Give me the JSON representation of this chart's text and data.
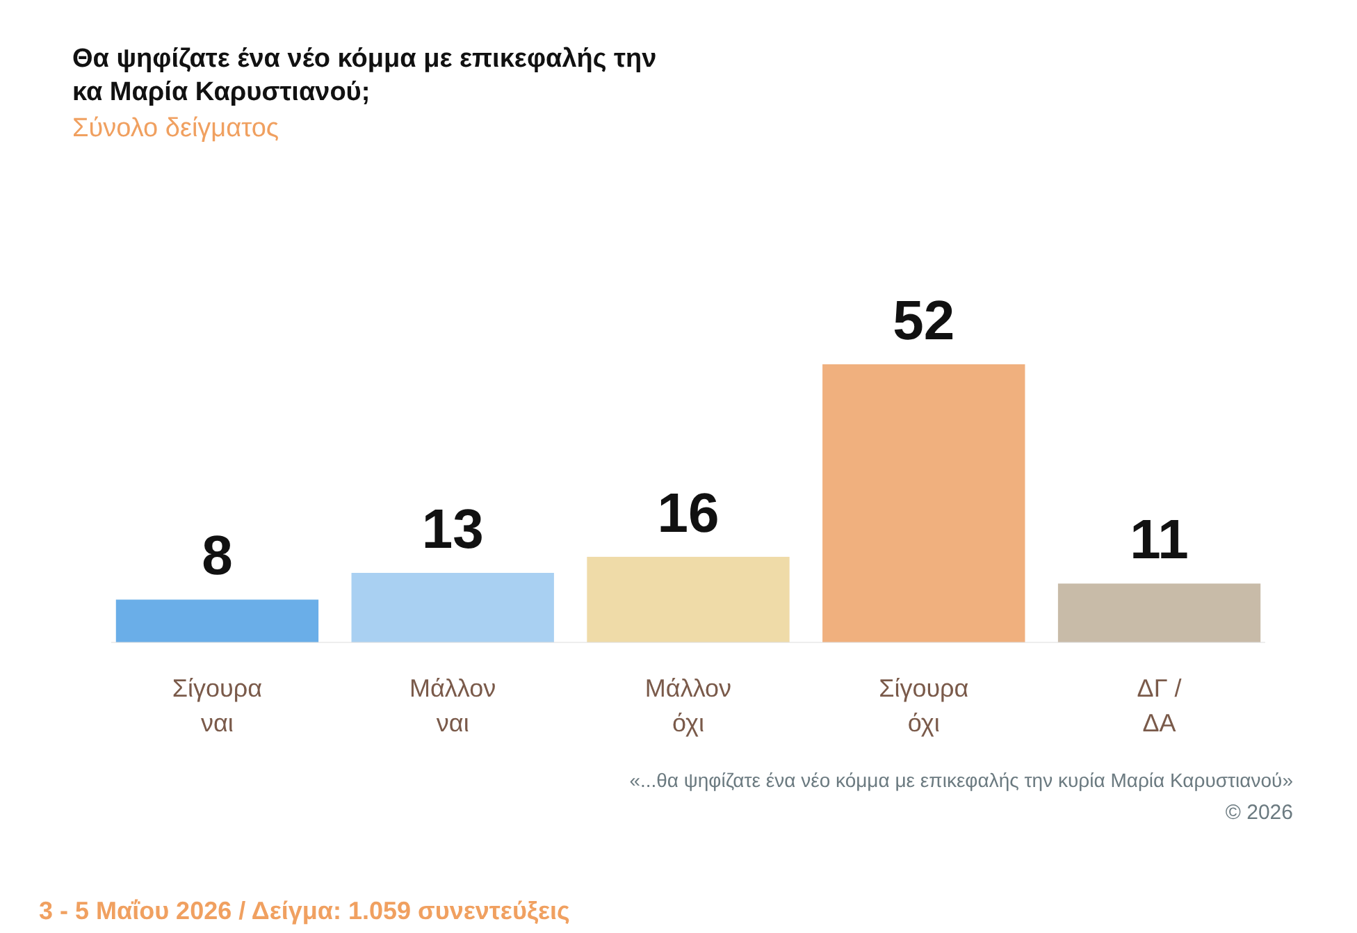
{
  "chart_data": {
    "type": "bar",
    "title": "Θα ψηφίζατε ένα νέο κόμμα με επικεφαλής την κα Μαρία Καρυστιανού;",
    "subtitle": "Σύνολο δείγματος",
    "categories": [
      "Σίγουρα ναι",
      "Μάλλον ναι",
      "Μάλλον όχι",
      "Σίγουρα όχι",
      "ΔΓ / ΔΑ"
    ],
    "values": [
      8,
      13,
      16,
      52,
      11
    ],
    "colors": [
      "#6aaee8",
      "#a9d0f2",
      "#efdba8",
      "#f0b07e",
      "#c8bba8"
    ],
    "data_labels": true,
    "annotations": [
      "«...θα ψηφίζατε ένα νέο κόμμα με επικεφαλής την κυρία Μαρία Καρυστιανού»",
      "© 2026",
      "3 - 5 Μαΐου 2026  /  Δείγμα:  1.059 συνεντεύξεις"
    ]
  }
}
